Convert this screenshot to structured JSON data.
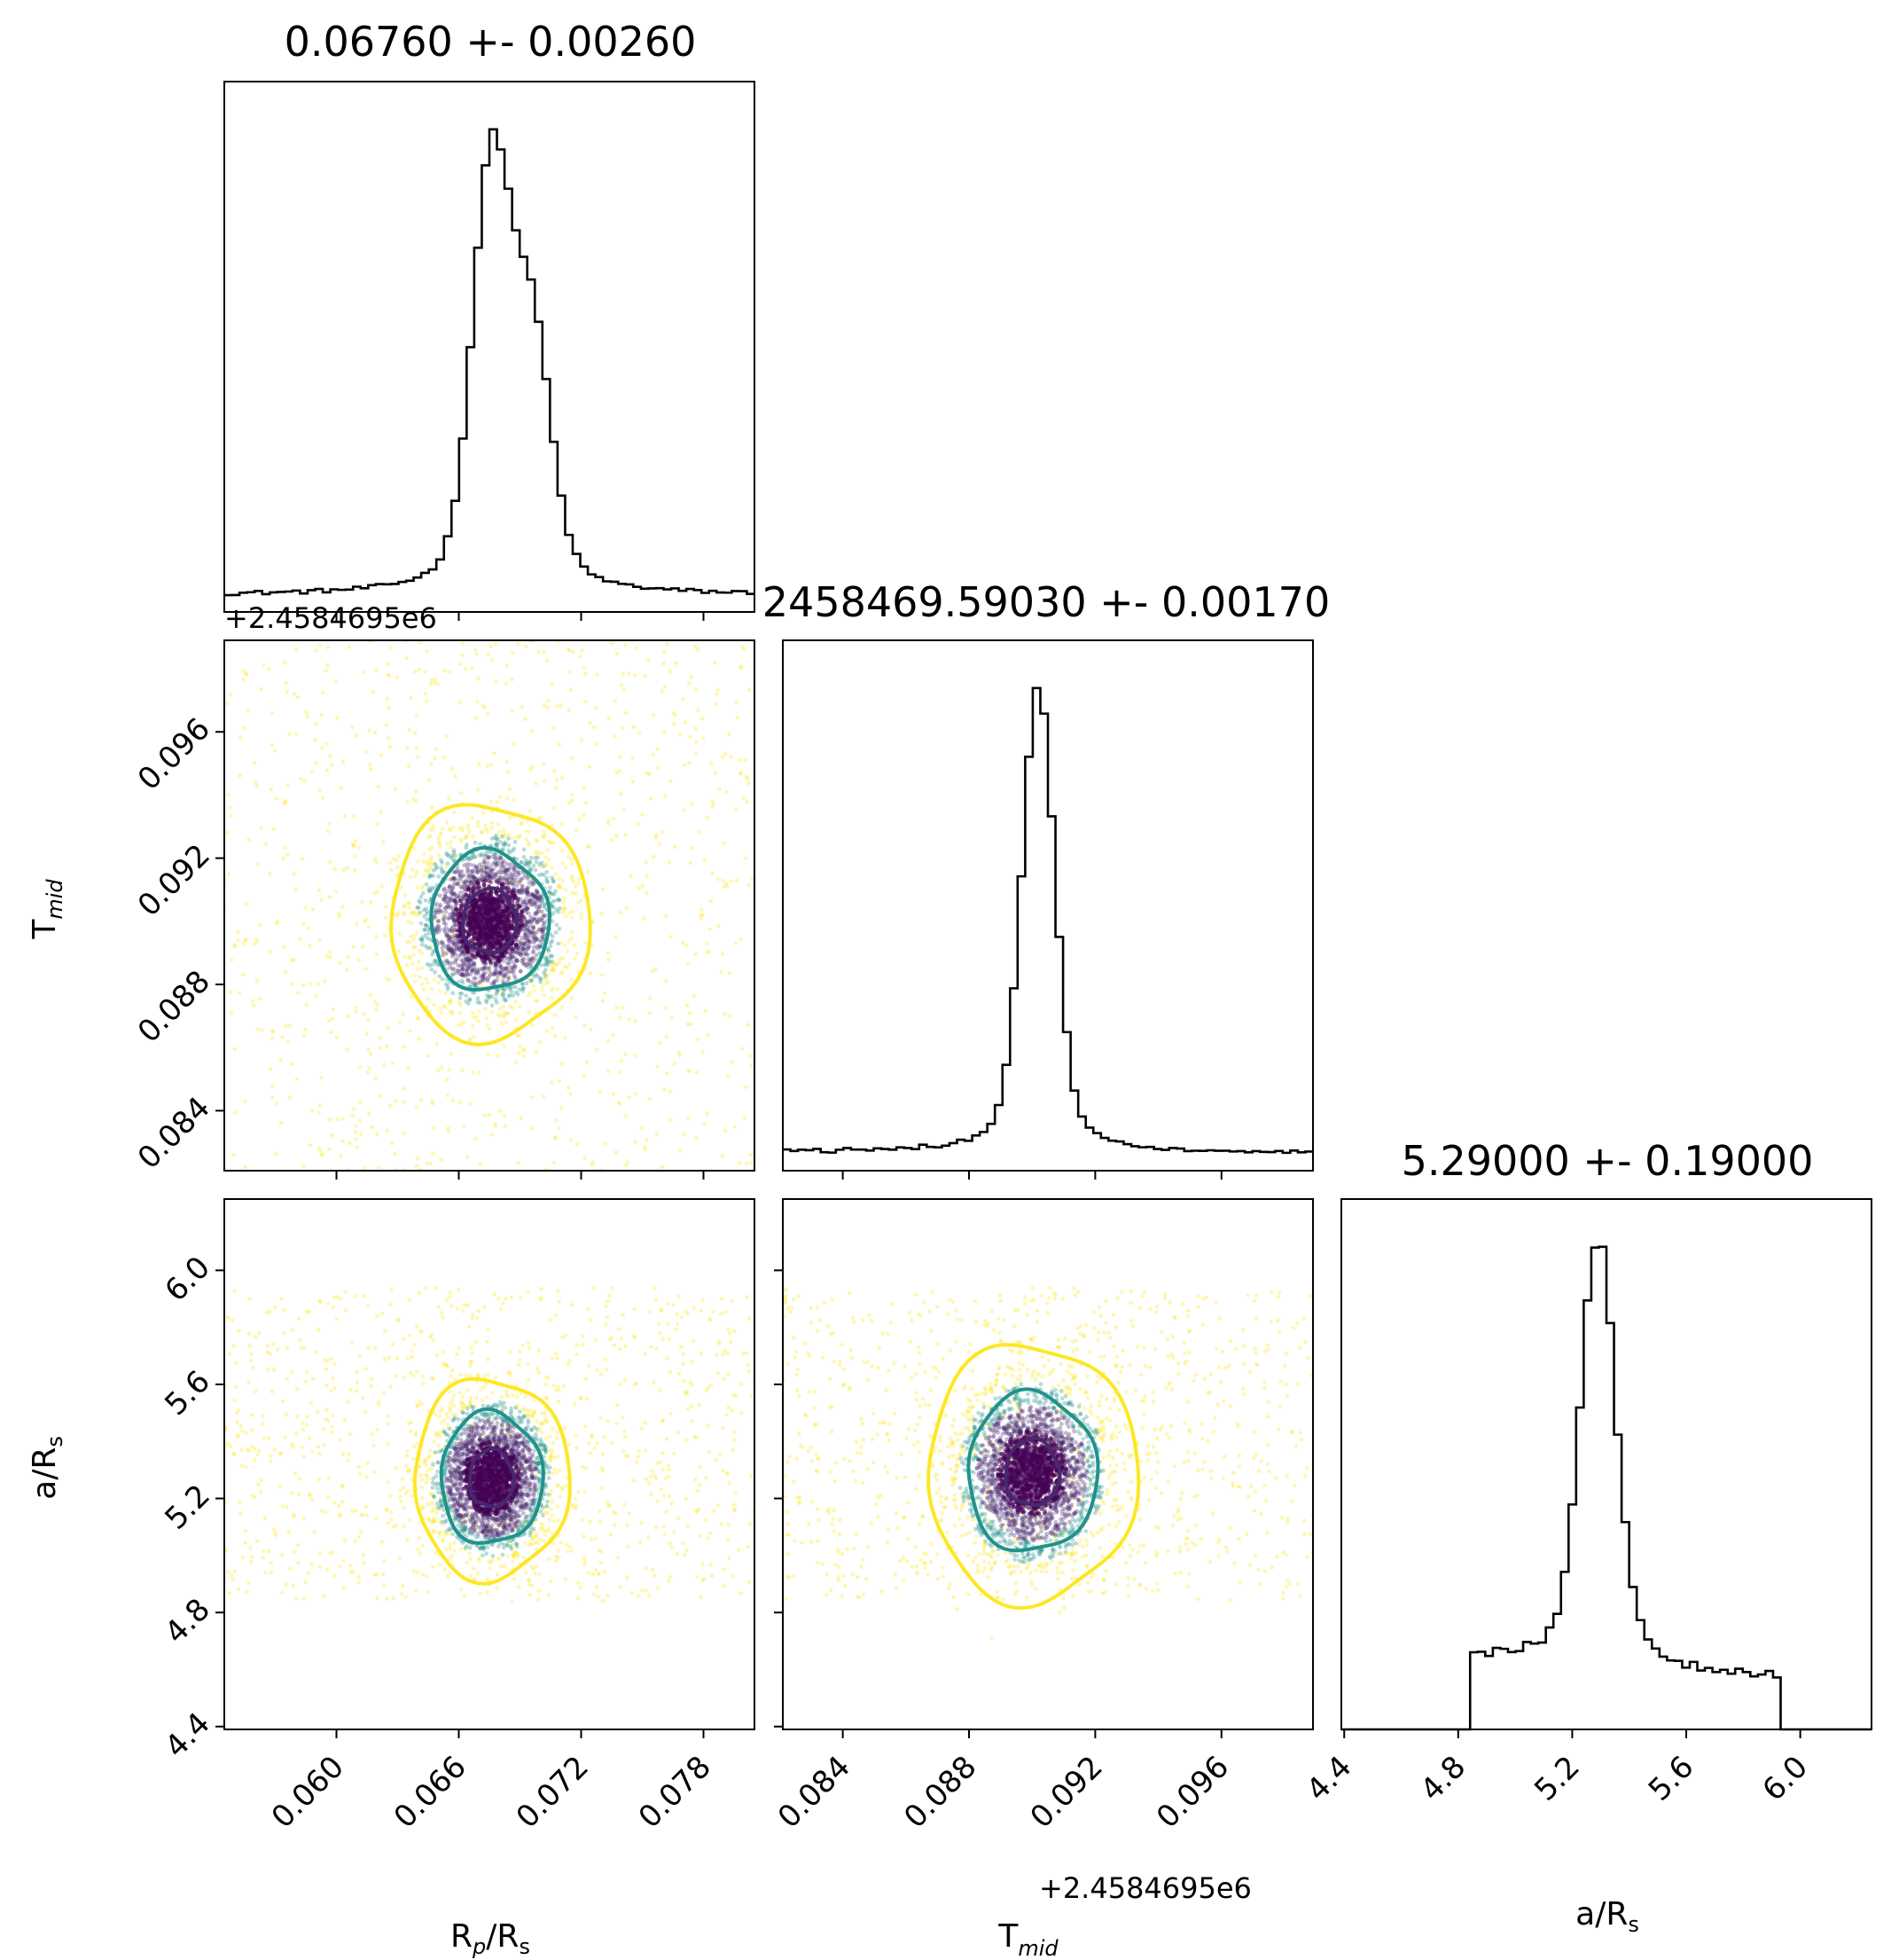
{
  "chart_data": [
    {
      "panel": "hist-rp",
      "type": "histogram",
      "title": "0.06760 +- 0.00260",
      "parameter": "R_p/R_s",
      "xlim": [
        0.0545,
        0.0805
      ],
      "peaks": [
        {
          "x": 0.0676,
          "height": 1.0
        },
        {
          "x": 0.0696,
          "height": 0.58
        }
      ],
      "width": 0.0009
    },
    {
      "panel": "scatter-rp-tmid",
      "type": "scatter",
      "x_parameter": "R_p/R_s",
      "y_parameter": "T_mid",
      "xlim": [
        0.0545,
        0.0805
      ],
      "ylim": [
        0.0821,
        0.0989
      ],
      "center": [
        0.0675,
        0.09
      ],
      "spread": [
        0.0017,
        0.0013
      ],
      "uniform_bounds": {
        "x": [
          0.0545,
          0.0805
        ],
        "y": [
          0.0821,
          0.0989
        ]
      },
      "contour_radii": [
        0.5,
        1.1,
        1.85
      ],
      "offset_label": "+2.4584695e6"
    },
    {
      "panel": "hist-tmid",
      "type": "histogram",
      "title": "2458469.59030 +- 0.00170",
      "parameter": "T_mid",
      "xlim": [
        0.0821,
        0.0989
      ],
      "peaks": [
        {
          "x": 0.0902,
          "height": 1.0
        }
      ],
      "width": 0.0005
    },
    {
      "panel": "scatter-rp-ars",
      "type": "scatter",
      "x_parameter": "R_p/R_s",
      "y_parameter": "a/R_s",
      "xlim": [
        0.0545,
        0.0805
      ],
      "ylim": [
        4.39,
        6.25
      ],
      "center": [
        0.0676,
        5.27
      ],
      "spread": [
        0.0014,
        0.13
      ],
      "uniform_bounds": {
        "x": [
          0.0545,
          0.0805
        ],
        "y": [
          4.84,
          5.94
        ]
      },
      "contour_radii": [
        0.5,
        1.15,
        1.75
      ]
    },
    {
      "panel": "scatter-tmid-ars",
      "type": "scatter",
      "x_parameter": "T_mid",
      "y_parameter": "a/R_s",
      "xlim": [
        0.0821,
        0.0989
      ],
      "ylim": [
        4.39,
        6.25
      ],
      "center": [
        0.09,
        5.29
      ],
      "spread": [
        0.0011,
        0.15
      ],
      "uniform_bounds": {
        "x": [
          0.0821,
          0.0989
        ],
        "y": [
          4.84,
          5.94
        ]
      },
      "contour_radii": [
        0.5,
        1.2,
        1.95
      ]
    },
    {
      "panel": "hist-ars",
      "type": "histogram",
      "title": "5.29000 +- 0.19000",
      "parameter": "a/R_s",
      "xlim": [
        4.39,
        6.25
      ],
      "peaks": [
        {
          "x": 5.29,
          "height": 1.0
        }
      ],
      "width": 0.06,
      "support": [
        4.83,
        5.94
      ]
    }
  ],
  "axes": {
    "rp": {
      "ticks": [
        0.06,
        0.066,
        0.072,
        0.078
      ],
      "tick_labels": [
        "0.060",
        "0.066",
        "0.072",
        "0.078"
      ],
      "label": "R",
      "label_sub": "p",
      "label_mid": "/R",
      "label_sub2": "s"
    },
    "tmid": {
      "ticks": [
        0.084,
        0.088,
        0.092,
        0.096
      ],
      "tick_labels": [
        "0.084",
        "0.088",
        "0.092",
        "0.096"
      ],
      "label": "T",
      "label_sub": "mid",
      "offset": "+2.4584695e6"
    },
    "ars": {
      "ticks": [
        4.4,
        4.8,
        5.2,
        5.6,
        6.0
      ],
      "tick_labels": [
        "4.4",
        "4.8",
        "5.2",
        "5.6",
        "6.0"
      ],
      "label": "a/R",
      "label_sub": "s"
    }
  },
  "colors": {
    "level1": "#47286f",
    "level2": "#21918c",
    "level3": "#fde725",
    "dense": "#440154",
    "hist": "#000000"
  }
}
